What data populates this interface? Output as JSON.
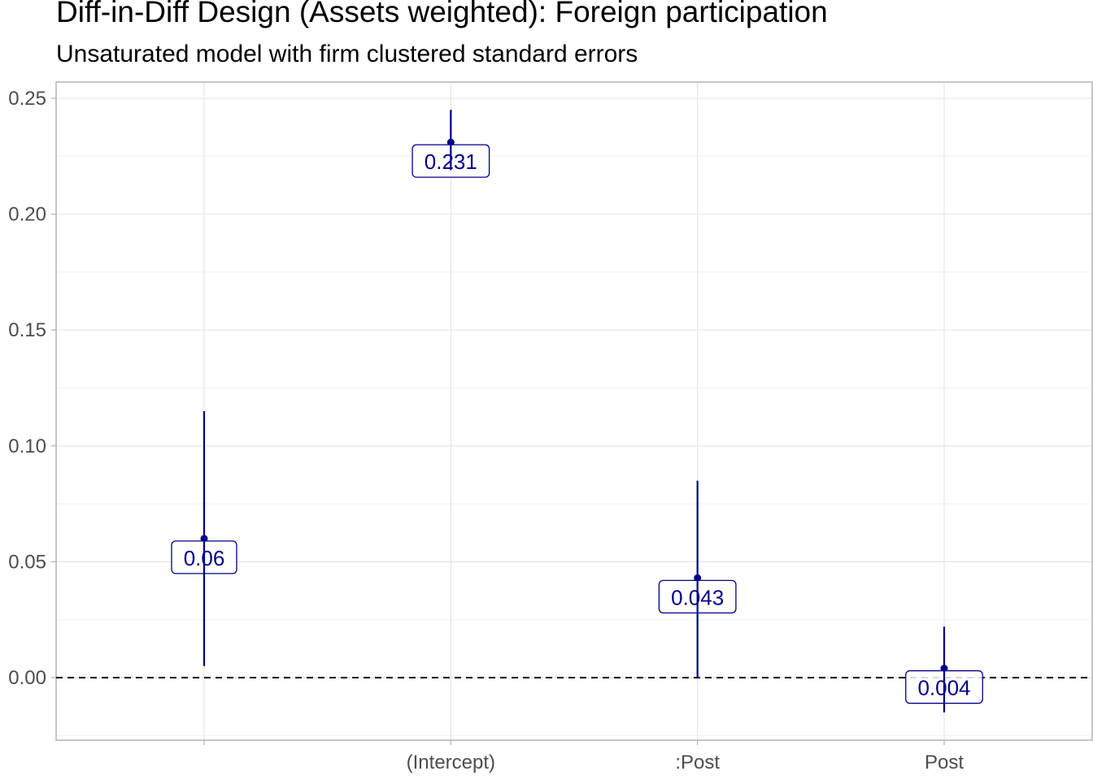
{
  "chart_data": {
    "type": "scatter",
    "title": "Diff-in-Diff Design (Assets weighted): Foreign participation",
    "subtitle": "Unsaturated model with firm clustered standard errors",
    "xlabel": "",
    "ylabel": "",
    "categories": [
      "",
      "(Intercept)",
      ":Post",
      "Post"
    ],
    "estimates": [
      0.06,
      0.231,
      0.043,
      0.004
    ],
    "ci_low": [
      0.005,
      0.219,
      0.0,
      -0.015
    ],
    "ci_high": [
      0.115,
      0.245,
      0.085,
      0.022
    ],
    "point_labels": [
      "0.06",
      "0.231",
      "0.043",
      "0.004"
    ],
    "ylim": [
      -0.027,
      0.257
    ],
    "yticks": [
      0.0,
      0.05,
      0.1,
      0.15,
      0.2,
      0.25
    ],
    "ytick_labels": [
      "0.00",
      "0.05",
      "0.10",
      "0.15",
      "0.20",
      "0.25"
    ],
    "reference_line": 0,
    "grid": true,
    "legend": "none",
    "colors": {
      "series": "#00008b",
      "grid": "#e5e5e5",
      "reference": "#000000"
    }
  }
}
